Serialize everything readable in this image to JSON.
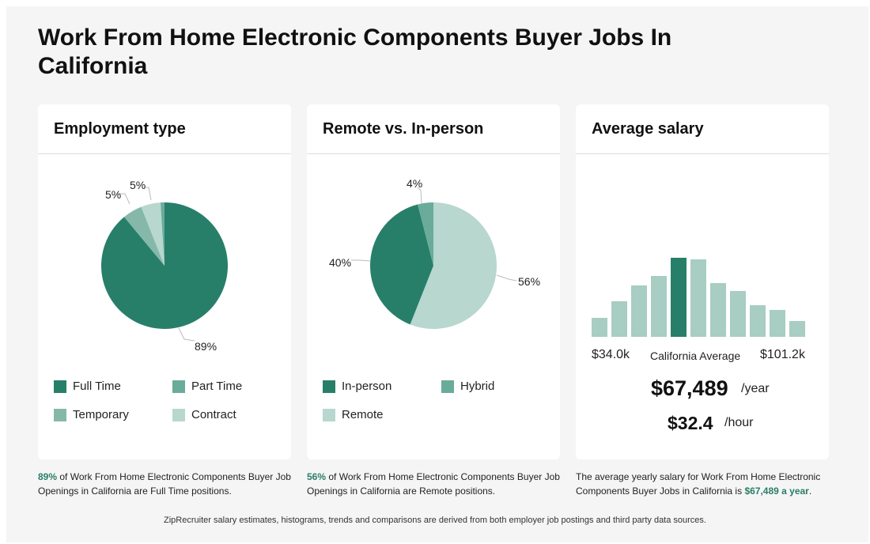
{
  "title": "Work From Home Electronic Components Buyer Jobs In California",
  "colors": {
    "dark": "#277f6a",
    "mid": "#6aab9a",
    "mid2": "#86b8a9",
    "light": "#b8d7ce",
    "hist": "#a8cdc2"
  },
  "chart_data": [
    {
      "type": "pie",
      "title": "Employment type",
      "slices": [
        {
          "name": "Full Time",
          "value": 89,
          "label": "89%"
        },
        {
          "name": "Temporary",
          "value": 5,
          "label": "5%"
        },
        {
          "name": "Contract",
          "value": 5,
          "label": "5%"
        },
        {
          "name": "Part Time",
          "value": 1,
          "label": ""
        }
      ],
      "legend": [
        "Full Time",
        "Part Time",
        "Temporary",
        "Contract"
      ]
    },
    {
      "type": "pie",
      "title": "Remote vs. In-person",
      "slices": [
        {
          "name": "Remote",
          "value": 56,
          "label": "56%"
        },
        {
          "name": "In-person",
          "value": 40,
          "label": "40%"
        },
        {
          "name": "Hybrid",
          "value": 4,
          "label": "4%"
        }
      ],
      "legend": [
        "In-person",
        "Hybrid",
        "Remote"
      ]
    },
    {
      "type": "bar",
      "title": "Average salary",
      "values": [
        24,
        45,
        65,
        77,
        100,
        98,
        68,
        58,
        40,
        34,
        20
      ],
      "highlight_index": 4,
      "min_label": "$34.0k",
      "max_label": "$101.2k",
      "center_label": "California Average"
    }
  ],
  "salary": {
    "yearly": "$67,489",
    "yearly_unit": "/year",
    "hourly": "$32.4",
    "hourly_unit": "/hour"
  },
  "captions": {
    "employment": {
      "bold": "89%",
      "text": " of Work From Home Electronic Components Buyer Job Openings in California are Full Time positions."
    },
    "remote": {
      "bold": "56%",
      "text": " of Work From Home Electronic Components Buyer Job Openings in California are Remote positions."
    },
    "salary": {
      "text": "The average yearly salary for Work From Home Electronic Components Buyer Jobs in California is ",
      "bold": "$67,489 a year",
      "end": "."
    }
  },
  "footer": "ZipRecruiter salary estimates, histograms, trends and comparisons are derived from both employer job postings and third party data sources."
}
